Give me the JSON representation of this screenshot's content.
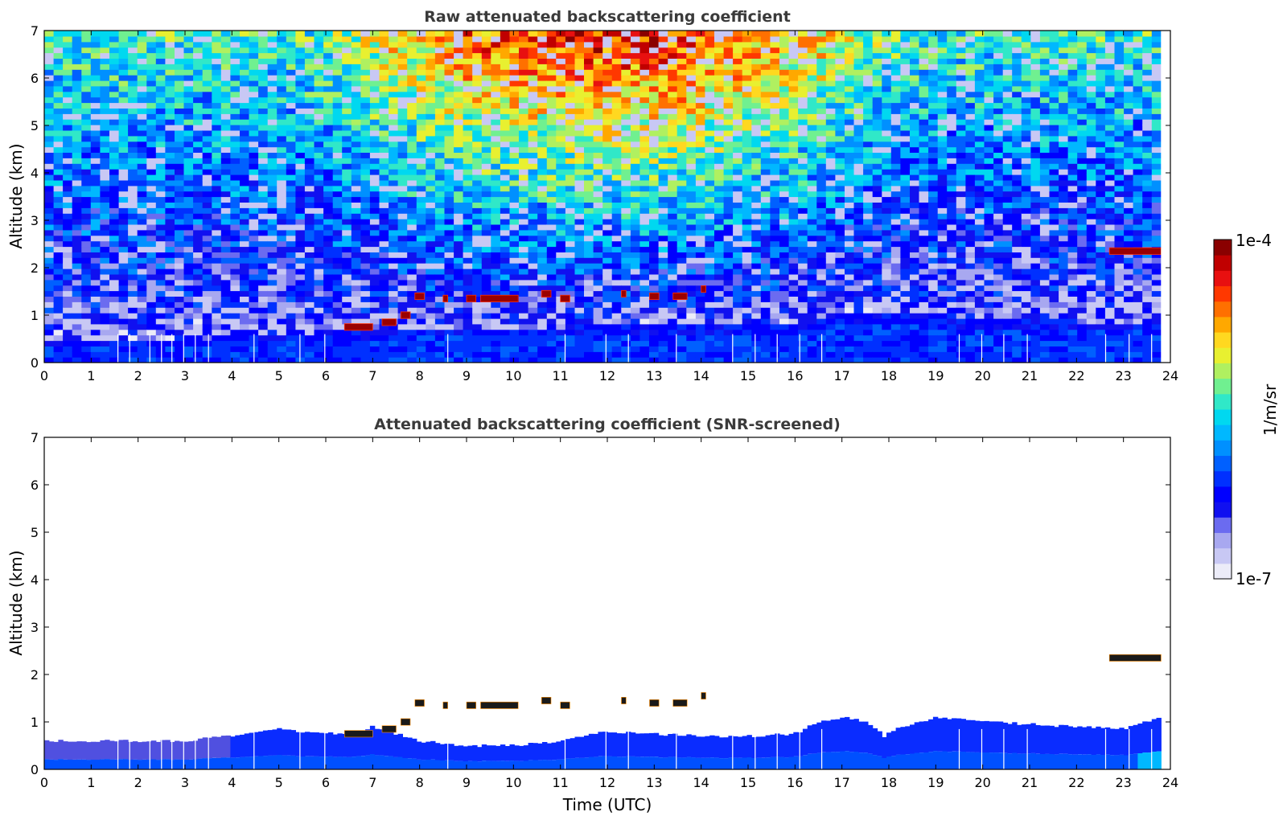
{
  "figure": {
    "colorbar": {
      "label": "1/m/sr",
      "max_label": "1e-4",
      "min_label": "1e-7",
      "range": [
        1e-07,
        0.0001
      ],
      "scale": "log",
      "colors": [
        "#ececf8",
        "#c8c8f4",
        "#a8a8f0",
        "#6b6bf0",
        "#1010f0",
        "#0000ff",
        "#0030ff",
        "#0060ff",
        "#0090ff",
        "#00b8ff",
        "#00d8f0",
        "#30e8c8",
        "#70f090",
        "#b0f060",
        "#e8f030",
        "#ffd820",
        "#ffa800",
        "#ff7000",
        "#ff3800",
        "#e81010",
        "#c00000",
        "#8a0000"
      ]
    }
  },
  "chart_data": [
    {
      "type": "heatmap",
      "title": "Raw attenuated backscattering coefficient",
      "xlabel": "",
      "ylabel": "Altitude (km)",
      "xlim": [
        0,
        24
      ],
      "ylim": [
        0,
        7
      ],
      "xticks": [
        "0",
        "1",
        "2",
        "3",
        "4",
        "5",
        "6",
        "7",
        "8",
        "9",
        "10",
        "11",
        "12",
        "13",
        "14",
        "15",
        "16",
        "17",
        "18",
        "19",
        "20",
        "21",
        "22",
        "23",
        "24"
      ],
      "yticks": [
        "0",
        "1",
        "2",
        "3",
        "4",
        "5",
        "6",
        "7"
      ],
      "data_end_time": 23.8,
      "grid": false,
      "boundary_layer_top_km": [
        [
          0,
          0.5
        ],
        [
          3,
          0.5
        ],
        [
          5,
          0.6
        ],
        [
          6,
          0.65
        ],
        [
          8,
          0.7
        ],
        [
          11,
          0.75
        ],
        [
          13,
          0.8
        ],
        [
          16,
          0.85
        ],
        [
          17,
          1.1
        ],
        [
          19,
          1.0
        ],
        [
          21,
          0.9
        ],
        [
          23,
          0.85
        ],
        [
          23.8,
          0.9
        ]
      ],
      "clouds": [
        {
          "t_start": 6.4,
          "t_end": 7.0,
          "alt_km": 0.75
        },
        {
          "t_start": 7.2,
          "t_end": 7.5,
          "alt_km": 0.85
        },
        {
          "t_start": 7.6,
          "t_end": 7.8,
          "alt_km": 1.0
        },
        {
          "t_start": 7.9,
          "t_end": 8.1,
          "alt_km": 1.4
        },
        {
          "t_start": 8.5,
          "t_end": 8.6,
          "alt_km": 1.35
        },
        {
          "t_start": 9.0,
          "t_end": 9.2,
          "alt_km": 1.35
        },
        {
          "t_start": 9.3,
          "t_end": 10.1,
          "alt_km": 1.35
        },
        {
          "t_start": 10.6,
          "t_end": 10.8,
          "alt_km": 1.45
        },
        {
          "t_start": 11.0,
          "t_end": 11.2,
          "alt_km": 1.35
        },
        {
          "t_start": 12.3,
          "t_end": 12.4,
          "alt_km": 1.45
        },
        {
          "t_start": 12.9,
          "t_end": 13.1,
          "alt_km": 1.4
        },
        {
          "t_start": 13.4,
          "t_end": 13.7,
          "alt_km": 1.4
        },
        {
          "t_start": 14.0,
          "t_end": 14.1,
          "alt_km": 1.55
        },
        {
          "t_start": 22.7,
          "t_end": 23.8,
          "alt_km": 2.35
        }
      ],
      "missing_profiles_time": [
        1.57,
        1.82,
        2.25,
        2.5,
        2.72,
        2.97,
        3.22,
        3.5,
        4.47,
        5.45,
        5.98,
        8.6,
        11.1,
        11.97,
        12.45,
        13.47,
        14.67,
        15.15,
        15.62,
        16.1,
        16.57,
        19.5,
        19.98,
        20.45,
        20.95,
        22.62,
        23.12,
        23.6
      ]
    },
    {
      "type": "heatmap",
      "title": "Attenuated backscattering coefficient (SNR-screened)",
      "xlabel": "Time (UTC)",
      "ylabel": "Altitude (km)",
      "xlim": [
        0,
        24
      ],
      "ylim": [
        0,
        7
      ],
      "xticks": [
        "0",
        "1",
        "2",
        "3",
        "4",
        "5",
        "6",
        "7",
        "8",
        "9",
        "10",
        "11",
        "12",
        "13",
        "14",
        "15",
        "16",
        "17",
        "18",
        "19",
        "20",
        "21",
        "22",
        "23",
        "24"
      ],
      "yticks": [
        "0",
        "1",
        "2",
        "3",
        "4",
        "5",
        "6",
        "7"
      ],
      "data_end_time": 23.8,
      "grid": false,
      "signal_top_km": [
        [
          0,
          0.6
        ],
        [
          2,
          0.6
        ],
        [
          3,
          0.6
        ],
        [
          4,
          0.7
        ],
        [
          5,
          0.85
        ],
        [
          6,
          0.75
        ],
        [
          6.5,
          0.75
        ],
        [
          7,
          0.9
        ],
        [
          8,
          0.6
        ],
        [
          9,
          0.5
        ],
        [
          10,
          0.5
        ],
        [
          11,
          0.6
        ],
        [
          12,
          0.8
        ],
        [
          13,
          0.75
        ],
        [
          14,
          0.7
        ],
        [
          15,
          0.7
        ],
        [
          16,
          0.75
        ],
        [
          16.5,
          1.0
        ],
        [
          17,
          1.1
        ],
        [
          17.5,
          1.0
        ],
        [
          17.9,
          0.7
        ],
        [
          18.2,
          0.9
        ],
        [
          18.8,
          1.0
        ],
        [
          19,
          1.1
        ],
        [
          20,
          1.0
        ],
        [
          21,
          0.95
        ],
        [
          22,
          0.9
        ],
        [
          23,
          0.85
        ],
        [
          23.8,
          1.1
        ]
      ],
      "clouds": [
        {
          "t_start": 6.4,
          "t_end": 7.0,
          "alt_km": 0.75
        },
        {
          "t_start": 7.2,
          "t_end": 7.5,
          "alt_km": 0.85
        },
        {
          "t_start": 7.6,
          "t_end": 7.8,
          "alt_km": 1.0
        },
        {
          "t_start": 7.9,
          "t_end": 8.1,
          "alt_km": 1.4
        },
        {
          "t_start": 8.5,
          "t_end": 8.6,
          "alt_km": 1.35
        },
        {
          "t_start": 9.0,
          "t_end": 9.2,
          "alt_km": 1.35
        },
        {
          "t_start": 9.3,
          "t_end": 10.1,
          "alt_km": 1.35
        },
        {
          "t_start": 10.6,
          "t_end": 10.8,
          "alt_km": 1.45
        },
        {
          "t_start": 11.0,
          "t_end": 11.2,
          "alt_km": 1.35
        },
        {
          "t_start": 12.3,
          "t_end": 12.4,
          "alt_km": 1.45
        },
        {
          "t_start": 12.9,
          "t_end": 13.1,
          "alt_km": 1.4
        },
        {
          "t_start": 13.4,
          "t_end": 13.7,
          "alt_km": 1.4
        },
        {
          "t_start": 14.0,
          "t_end": 14.1,
          "alt_km": 1.55
        },
        {
          "t_start": 22.7,
          "t_end": 23.8,
          "alt_km": 2.35
        }
      ],
      "missing_profiles_time": [
        1.57,
        1.82,
        2.25,
        2.5,
        2.72,
        2.97,
        3.22,
        3.5,
        4.47,
        5.45,
        5.98,
        8.6,
        11.1,
        11.97,
        12.45,
        13.47,
        14.67,
        15.15,
        15.62,
        16.1,
        16.57,
        19.5,
        19.98,
        20.45,
        20.95,
        22.62,
        23.12,
        23.6
      ]
    }
  ]
}
